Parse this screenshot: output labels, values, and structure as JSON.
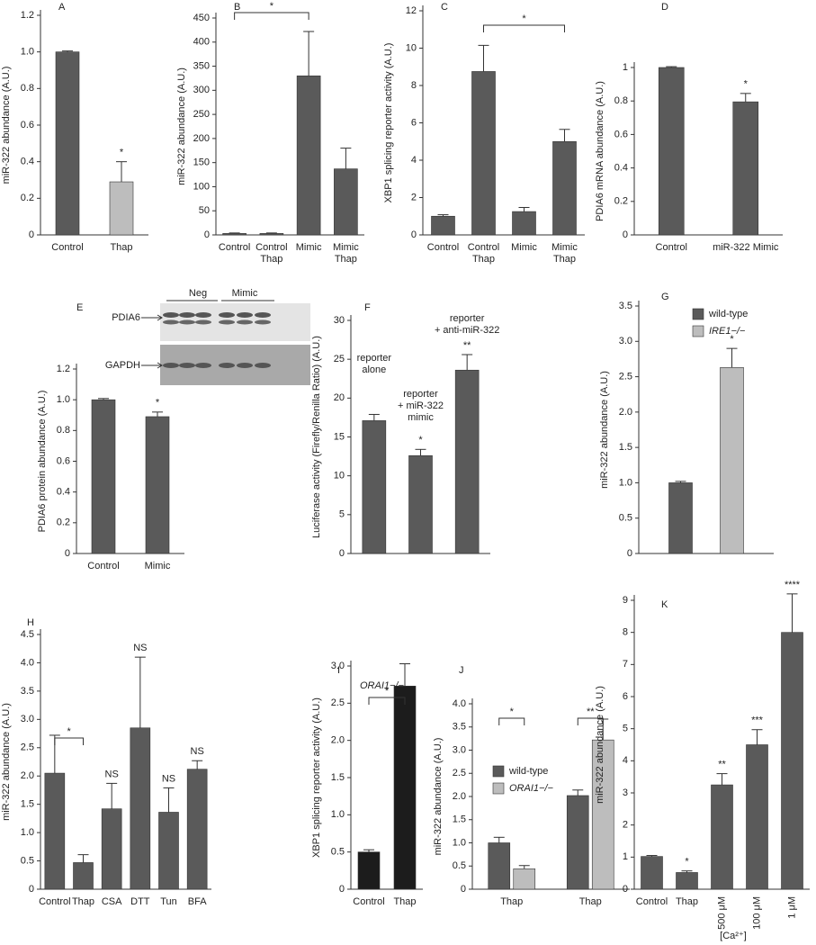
{
  "chart_data": [
    {
      "type": "bar",
      "panel": "A",
      "ylabel": "miR-322 abundance (A.U.)",
      "categories": [
        "Control",
        "Thap"
      ],
      "values": [
        1.0,
        0.29
      ],
      "errors": [
        0.005,
        0.11
      ],
      "colors": [
        "#5a5a5a",
        "#bdbdbd"
      ],
      "annotations": [
        null,
        "*"
      ],
      "ylim": [
        0,
        1.2
      ],
      "yticks": [
        0,
        0.2,
        0.4,
        0.6,
        0.8,
        {
          "value": 1,
          "label": "1.0"
        },
        1.2
      ]
    },
    {
      "type": "bar",
      "panel": "B",
      "ylabel": "miR-322 abundance (A.U.)",
      "categories": [
        [
          "Control"
        ],
        [
          "Control",
          "Thap"
        ],
        [
          "Mimic"
        ],
        [
          "Mimic",
          "Thap"
        ]
      ],
      "values": [
        3,
        3,
        330,
        137
      ],
      "errors": [
        1,
        1,
        92,
        43
      ],
      "color": "#5a5a5a",
      "brackets": [
        "*"
      ],
      "ylim": [
        0,
        450
      ],
      "yticks": [
        0,
        50,
        100,
        150,
        200,
        250,
        300,
        350,
        400,
        450
      ]
    },
    {
      "type": "bar",
      "panel": "C",
      "ylabel": "XBP1 splicing reporter activity (A.U.)",
      "categories": [
        [
          "Control"
        ],
        [
          "Control",
          "Thap"
        ],
        [
          "Mimic"
        ],
        [
          "Mimic",
          "Thap"
        ]
      ],
      "values": [
        1.0,
        8.75,
        1.25,
        5.0
      ],
      "errors": [
        0.08,
        1.4,
        0.22,
        0.65
      ],
      "color": "#5a5a5a",
      "brackets": [
        "*"
      ],
      "ylim": [
        0,
        12
      ],
      "yticks": [
        0,
        2,
        4,
        6,
        8,
        10,
        12
      ]
    },
    {
      "type": "bar",
      "panel": "D",
      "ylabel": "PDIA6 mRNA abundance (A.U.)",
      "categories": [
        "Control",
        "miR-322 Mimic"
      ],
      "values": [
        1.0,
        0.795
      ],
      "errors": [
        0.005,
        0.05
      ],
      "color": "#5a5a5a",
      "annotations": [
        null,
        "*"
      ],
      "ylim": [
        0,
        1
      ],
      "yticks": [
        0,
        0.2,
        0.4,
        0.6,
        0.8,
        1
      ]
    },
    {
      "type": "bar",
      "panel": "E",
      "ylabel": "PDIA6 protein abundance (A.U.)",
      "categories": [
        "Control",
        "Mimic"
      ],
      "values": [
        1.0,
        0.89
      ],
      "errors": [
        0.008,
        0.03
      ],
      "color": "#5a5a5a",
      "annotations": [
        null,
        "*"
      ],
      "ylim": [
        0,
        1.2
      ],
      "yticks": [
        0,
        0.2,
        0.4,
        0.6,
        0.8,
        {
          "value": 1,
          "label": "1.0"
        },
        1.2
      ],
      "blot": {
        "lanes": [
          "Neg",
          "Mimic"
        ],
        "rows": [
          "PDIA6",
          "GAPDH"
        ]
      }
    },
    {
      "type": "bar",
      "panel": "F",
      "ylabel": "Luciferase activity (Firefly/Renilla Ratio) (A.U.)",
      "categories": [
        [
          "reporter",
          "alone"
        ],
        [
          "reporter",
          "+ miR-322",
          "mimic"
        ],
        [
          "reporter",
          "+ anti-miR-322"
        ]
      ],
      "values": [
        17.1,
        12.6,
        23.6
      ],
      "errors": [
        0.8,
        0.8,
        2.0
      ],
      "color": "#5a5a5a",
      "annotations": [
        null,
        "*",
        "**"
      ],
      "ylim": [
        0,
        30
      ],
      "yticks": [
        0,
        5,
        10,
        15,
        20,
        25,
        30
      ]
    },
    {
      "type": "bar",
      "panel": "G",
      "ylabel": "miR-322 abundance (A.U.)",
      "series": [
        {
          "name": "wild-type",
          "color": "#5a5a5a",
          "values": [
            1.0
          ],
          "errors": [
            0.02
          ],
          "annotations": [
            null
          ]
        },
        {
          "name": "IRE1−/−",
          "color": "#bdbdbd",
          "values": [
            2.63
          ],
          "errors": [
            0.27
          ],
          "annotations": [
            "*"
          ]
        }
      ],
      "ylim": [
        0,
        3.5
      ],
      "yticks": [
        0,
        0.5,
        {
          "value": 1,
          "label": "1.0"
        },
        1.5,
        {
          "value": 2,
          "label": "2.0"
        },
        2.5,
        {
          "value": 3,
          "label": "3.0"
        },
        3.5
      ]
    },
    {
      "type": "bar",
      "panel": "H",
      "ylabel": "miR-322 abundance (A.U.)",
      "categories": [
        "Control",
        "Thap",
        "CSA",
        "DTT",
        "Tun",
        "BFA"
      ],
      "values": [
        2.05,
        0.47,
        1.42,
        2.85,
        1.36,
        2.12
      ],
      "errors": [
        0.67,
        0.14,
        0.45,
        1.25,
        0.43,
        0.15
      ],
      "color": "#5a5a5a",
      "annotations": [
        null,
        null,
        "NS",
        "NS",
        "NS",
        "NS"
      ],
      "brackets": [
        "*"
      ],
      "ylim": [
        0,
        4.5
      ],
      "yticks": [
        0,
        0.5,
        {
          "value": 1,
          "label": "1.0"
        },
        1.5,
        {
          "value": 2,
          "label": "2.0"
        },
        2.5,
        {
          "value": 3,
          "label": "3.0"
        },
        3.5,
        {
          "value": 4,
          "label": "4.0"
        },
        4.5
      ]
    },
    {
      "type": "bar",
      "panel": "I",
      "ylabel": "XBP1 splicing reporter activity (A.U.)",
      "inset_label": "ORAI1−/−",
      "categories": [
        "Control",
        "Thap"
      ],
      "values": [
        0.5,
        2.73
      ],
      "errors": [
        0.03,
        0.3
      ],
      "color": "#1c1c1c",
      "brackets": [
        "*"
      ],
      "ylim": [
        0,
        3
      ],
      "yticks": [
        0,
        0.5,
        {
          "value": 1,
          "label": "1.0"
        },
        1.5,
        {
          "value": 2,
          "label": "2.0"
        },
        2.5,
        {
          "value": 3,
          "label": "3.0"
        }
      ]
    },
    {
      "type": "bar",
      "panel": "J",
      "ylabel": "miR-322 abundance (A.U.)",
      "categories": [
        "Thap",
        "Thap"
      ],
      "series": [
        {
          "name": "wild-type",
          "color": "#5a5a5a",
          "values": [
            1.0,
            2.02
          ],
          "errors": [
            0.12,
            0.12
          ]
        },
        {
          "name": "ORAI1−/−",
          "color": "#bdbdbd",
          "values": [
            0.44,
            3.22
          ],
          "errors": [
            0.07,
            0.45
          ]
        }
      ],
      "brackets": [
        "*",
        "**"
      ],
      "ylim": [
        0,
        4
      ],
      "yticks": [
        0,
        0.5,
        {
          "value": 1,
          "label": "1.0"
        },
        1.5,
        {
          "value": 2,
          "label": "2.0"
        },
        2.5,
        {
          "value": 3,
          "label": "3.0"
        },
        3.5,
        {
          "value": 4,
          "label": "4.0"
        }
      ]
    },
    {
      "type": "bar",
      "panel": "K",
      "ylabel": "miR-322 abundance (A.U.)",
      "xlabel": "[Ca²⁺]",
      "categories": [
        "Control",
        "Thap",
        "500 μM",
        "100 μM",
        "1 μM"
      ],
      "values": [
        1.02,
        0.52,
        3.25,
        4.5,
        8.0
      ],
      "errors": [
        0.03,
        0.05,
        0.35,
        0.47,
        1.2
      ],
      "color": "#5a5a5a",
      "annotations": [
        null,
        "*",
        "**",
        "***",
        "****"
      ],
      "ylim": [
        0,
        9
      ],
      "yticks": [
        0,
        1,
        2,
        3,
        4,
        5,
        6,
        7,
        8,
        9
      ]
    }
  ]
}
